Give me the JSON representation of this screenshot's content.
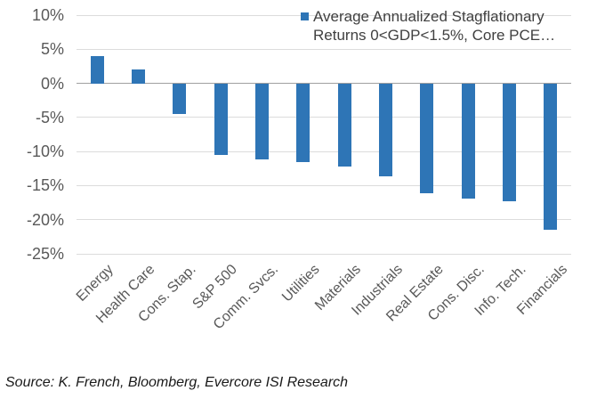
{
  "chart_data": {
    "type": "bar",
    "title": "",
    "legend_label": "Average Annualized Stagflationary Returns 0<GDP<1.5%, Core PCE…",
    "legend_position": "top-right",
    "categories": [
      "Energy",
      "Health Care",
      "Cons. Stap.",
      "S&P 500",
      "Comm. Svcs.",
      "Utilities",
      "Materials",
      "Industrials",
      "Real Estate",
      "Cons. Disc.",
      "Info. Tech.",
      "Financials"
    ],
    "values": [
      4.0,
      2.0,
      -4.5,
      -10.5,
      -11.2,
      -11.6,
      -12.2,
      -13.6,
      -16.1,
      -16.9,
      -17.3,
      -21.5
    ],
    "xlabel": "",
    "ylabel": "",
    "ylim": [
      -25,
      10
    ],
    "y_ticks": [
      10,
      5,
      0,
      -5,
      -10,
      -15,
      -20,
      -25
    ],
    "y_tick_labels": [
      "10%",
      "5%",
      "0%",
      "-5%",
      "-10%",
      "-15%",
      "-20%",
      "-25%"
    ],
    "grid": true,
    "bar_color": "#2E75B6",
    "gridline_color": "#DCDCDC",
    "zero_line_color": "#A0A0A0",
    "axis_text_color": "#595959"
  },
  "footer": {
    "source_text": "Source: K. French, Bloomberg, Evercore ISI Research"
  }
}
